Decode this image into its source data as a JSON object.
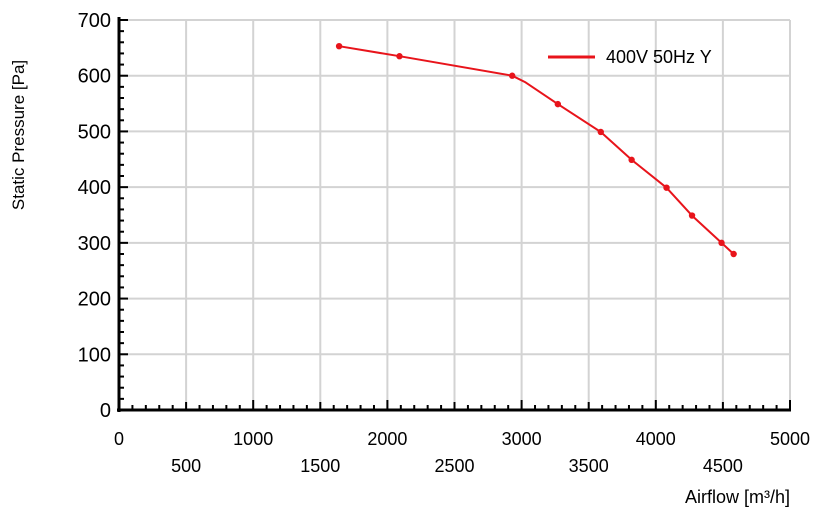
{
  "chart_data": {
    "type": "line",
    "title": "",
    "xlabel": "Airflow [m³/h]",
    "ylabel": "Static Pressure [Pa]",
    "xlim": [
      0,
      5000
    ],
    "ylim": [
      0,
      700
    ],
    "x_ticks_major": [
      0,
      1000,
      2000,
      3000,
      4000,
      5000
    ],
    "x_ticks_major_labels": [
      "0",
      "1000",
      "2000",
      "3000",
      "4000",
      "5000"
    ],
    "x_ticks_mid": [
      500,
      1500,
      2500,
      3500,
      4500
    ],
    "x_ticks_mid_labels": [
      "500",
      "1500",
      "2500",
      "3500",
      "4500"
    ],
    "y_ticks": [
      0,
      100,
      200,
      300,
      400,
      500,
      600,
      700
    ],
    "y_tick_labels": [
      "0",
      "100",
      "200",
      "300",
      "400",
      "500",
      "600",
      "700"
    ],
    "grid": true,
    "legend_position": "top-right",
    "series": [
      {
        "name": "400V 50Hz Y",
        "color": "#e8141b",
        "legend_text_color": "#e8408f",
        "x": [
          1640,
          2090,
          2930,
          3030,
          3270,
          3590,
          3820,
          4080,
          4270,
          4490,
          4580
        ],
        "y": [
          653,
          635,
          600,
          588,
          549,
          499,
          449,
          399,
          349,
          300,
          280
        ],
        "marker_indices": [
          0,
          1,
          2,
          4,
          5,
          6,
          7,
          8,
          9,
          10
        ]
      }
    ]
  }
}
